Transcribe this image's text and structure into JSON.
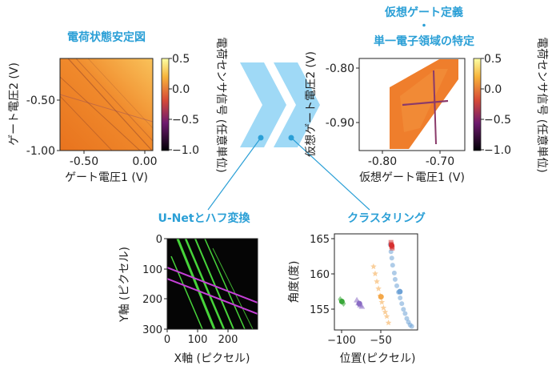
{
  "colors": {
    "accent": "#2a9fd6",
    "chevron": "#9fd9f6",
    "heat_bg": "#f0862a",
    "purple_line": "#c640d8",
    "green_line": "#47d43a",
    "scatter_blue": "#6ea2d6",
    "scatter_orange": "#f4a84a",
    "scatter_red": "#d62e2e",
    "scatter_purple": "#8a6cc4",
    "scatter_green": "#3aa83a"
  },
  "panels": {
    "stability": {
      "title": "電荷状態安定図",
      "xlabel": "ゲート電圧1 (V)",
      "ylabel": "ゲート電圧2 (V)",
      "xticks": [
        "-0.50",
        "0.00"
      ],
      "yticks": [
        "-0.50",
        "-1.00"
      ],
      "cbar_label": "電荷センサ信号 (任意単位)",
      "cbar_ticks": [
        "0.5",
        "0.0",
        "−0.5",
        "−1.0"
      ]
    },
    "virtual": {
      "title_line1": "仮想ゲート定義",
      "title_dot": "・",
      "title_line2": "単一電子領域の特定",
      "xlabel": "仮想ゲート電圧1 (V)",
      "ylabel": "仮想ゲート電圧2 (V)",
      "xticks": [
        "-0.80",
        "-0.70"
      ],
      "yticks": [
        "-0.80",
        "-0.90"
      ],
      "cbar_label": "電荷センサ信号 (任意単位)",
      "cbar_ticks": [
        "0.5",
        "0.0",
        "−0.5",
        "−1.0"
      ]
    },
    "unet": {
      "title": "U-Netとハフ変換",
      "xlabel": "X軸 (ピクセル)",
      "ylabel": "Y軸 (ピクセル)",
      "xticks": [
        "0",
        "100",
        "200"
      ],
      "yticks": [
        "0",
        "100",
        "200",
        "300"
      ]
    },
    "cluster": {
      "title": "クラスタリング",
      "xlabel": "位置(ピクセル)",
      "ylabel": "角度(度)",
      "xticks": [
        "−100",
        "−50"
      ],
      "yticks": [
        "165",
        "160",
        "155"
      ]
    }
  },
  "chart_data": {
    "type": "scatter",
    "xlim": [
      -105,
      -5
    ],
    "ylim": [
      152.5,
      166
    ],
    "series": [
      {
        "color": "#6ea2d6",
        "marker": "circle",
        "x": [
          -38,
          -37,
          -36,
          -35,
          -33,
          -32,
          -30,
          -28,
          -26,
          -24,
          -22,
          -20,
          -18,
          -16,
          -14,
          -12
        ],
        "y": [
          164.5,
          163.5,
          162.6,
          161.6,
          160.5,
          159.6,
          158.7,
          157.8,
          157,
          156.2,
          155.4,
          154.8,
          154.1,
          153.6,
          153.2,
          153
        ]
      },
      {
        "color": "#f4a84a",
        "marker": "star",
        "x": [
          -58,
          -56,
          -54,
          -52,
          -50,
          -48,
          -46,
          -44,
          -42,
          -40
        ],
        "y": [
          161.4,
          160.4,
          159.3,
          158.3,
          157.3,
          156.4,
          155.6,
          155,
          154.4,
          153.5
        ]
      },
      {
        "color": "#d62e2e",
        "marker": "square",
        "x": [
          -37,
          -36.5,
          -36,
          -35.5
        ],
        "y": [
          164.8,
          164.5,
          164.2,
          164
        ]
      },
      {
        "color": "#8a6cc4",
        "marker": "triangle",
        "x": [
          -78,
          -76,
          -74,
          -72
        ],
        "y": [
          156.7,
          156.3,
          156,
          155.8
        ]
      },
      {
        "color": "#3aa83a",
        "marker": "diamond",
        "x": [
          -98,
          -96,
          -94
        ],
        "y": [
          156.8,
          156.5,
          156.2
        ]
      }
    ]
  }
}
